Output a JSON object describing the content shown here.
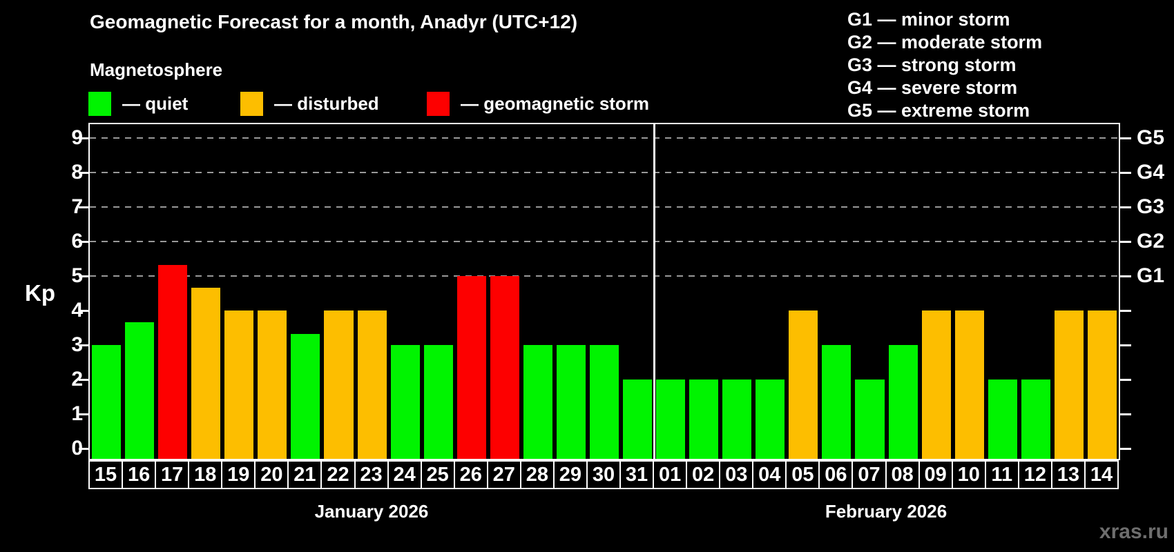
{
  "page": {
    "background": "#000000",
    "watermark": "xras.ru"
  },
  "header": {
    "title": "Geomagnetic Forecast for a month, Anadyr (UTC+12)",
    "subtitle": "Magnetosphere",
    "condition_legend": [
      {
        "key": "quiet",
        "swatch_color": "#00f400",
        "label": "— quiet"
      },
      {
        "key": "disturbed",
        "swatch_color": "#fdbe00",
        "label": "— disturbed"
      },
      {
        "key": "storm",
        "swatch_color": "#fd0000",
        "label": "— geomagnetic storm"
      }
    ],
    "g_scale_legend": [
      "G1 — minor storm",
      "G2 — moderate storm",
      "G3 — strong storm",
      "G4 — severe storm",
      "G5 — extreme storm"
    ]
  },
  "chart_data": {
    "type": "bar",
    "title": "Geomagnetic Forecast for a month, Anadyr (UTC+12)",
    "ylabel": "Kp",
    "ylim": [
      0,
      9
    ],
    "y_ticks": [
      0,
      1,
      2,
      3,
      4,
      5,
      6,
      7,
      8,
      9
    ],
    "gridlines_at_kp": [
      5,
      6,
      7,
      8,
      9
    ],
    "grid": "dashed gray horizontal lines at Kp 5-9",
    "legend_position": "top",
    "right_axis": [
      {
        "label": "G1",
        "kp": 5
      },
      {
        "label": "G2",
        "kp": 6
      },
      {
        "label": "G3",
        "kp": 7
      },
      {
        "label": "G4",
        "kp": 8
      },
      {
        "label": "G5",
        "kp": 9
      }
    ],
    "colors": {
      "quiet": "#00f400",
      "disturbed": "#fdbe00",
      "storm": "#fd0000"
    },
    "months": [
      {
        "label": "January 2026"
      },
      {
        "label": "February 2026"
      }
    ],
    "bars": [
      {
        "day": "15",
        "month": 0,
        "kp": 3.0,
        "condition": "quiet"
      },
      {
        "day": "16",
        "month": 0,
        "kp": 3.67,
        "condition": "quiet"
      },
      {
        "day": "17",
        "month": 0,
        "kp": 5.33,
        "condition": "storm"
      },
      {
        "day": "18",
        "month": 0,
        "kp": 4.67,
        "condition": "disturbed"
      },
      {
        "day": "19",
        "month": 0,
        "kp": 4.0,
        "condition": "disturbed"
      },
      {
        "day": "20",
        "month": 0,
        "kp": 4.0,
        "condition": "disturbed"
      },
      {
        "day": "21",
        "month": 0,
        "kp": 3.33,
        "condition": "quiet"
      },
      {
        "day": "22",
        "month": 0,
        "kp": 4.0,
        "condition": "disturbed"
      },
      {
        "day": "23",
        "month": 0,
        "kp": 4.0,
        "condition": "disturbed"
      },
      {
        "day": "24",
        "month": 0,
        "kp": 3.0,
        "condition": "quiet"
      },
      {
        "day": "25",
        "month": 0,
        "kp": 3.0,
        "condition": "quiet"
      },
      {
        "day": "26",
        "month": 0,
        "kp": 5.0,
        "condition": "storm"
      },
      {
        "day": "27",
        "month": 0,
        "kp": 5.0,
        "condition": "storm"
      },
      {
        "day": "28",
        "month": 0,
        "kp": 3.0,
        "condition": "quiet"
      },
      {
        "day": "29",
        "month": 0,
        "kp": 3.0,
        "condition": "quiet"
      },
      {
        "day": "30",
        "month": 0,
        "kp": 3.0,
        "condition": "quiet"
      },
      {
        "day": "31",
        "month": 0,
        "kp": 2.0,
        "condition": "quiet"
      },
      {
        "day": "01",
        "month": 1,
        "kp": 2.0,
        "condition": "quiet"
      },
      {
        "day": "02",
        "month": 1,
        "kp": 2.0,
        "condition": "quiet"
      },
      {
        "day": "03",
        "month": 1,
        "kp": 2.0,
        "condition": "quiet"
      },
      {
        "day": "04",
        "month": 1,
        "kp": 2.0,
        "condition": "quiet"
      },
      {
        "day": "05",
        "month": 1,
        "kp": 4.0,
        "condition": "disturbed"
      },
      {
        "day": "06",
        "month": 1,
        "kp": 3.0,
        "condition": "quiet"
      },
      {
        "day": "07",
        "month": 1,
        "kp": 2.0,
        "condition": "quiet"
      },
      {
        "day": "08",
        "month": 1,
        "kp": 3.0,
        "condition": "quiet"
      },
      {
        "day": "09",
        "month": 1,
        "kp": 4.0,
        "condition": "disturbed"
      },
      {
        "day": "10",
        "month": 1,
        "kp": 4.0,
        "condition": "disturbed"
      },
      {
        "day": "11",
        "month": 1,
        "kp": 2.0,
        "condition": "quiet"
      },
      {
        "day": "12",
        "month": 1,
        "kp": 2.0,
        "condition": "quiet"
      },
      {
        "day": "13",
        "month": 1,
        "kp": 4.0,
        "condition": "disturbed"
      },
      {
        "day": "14",
        "month": 1,
        "kp": 4.0,
        "condition": "disturbed"
      }
    ]
  }
}
